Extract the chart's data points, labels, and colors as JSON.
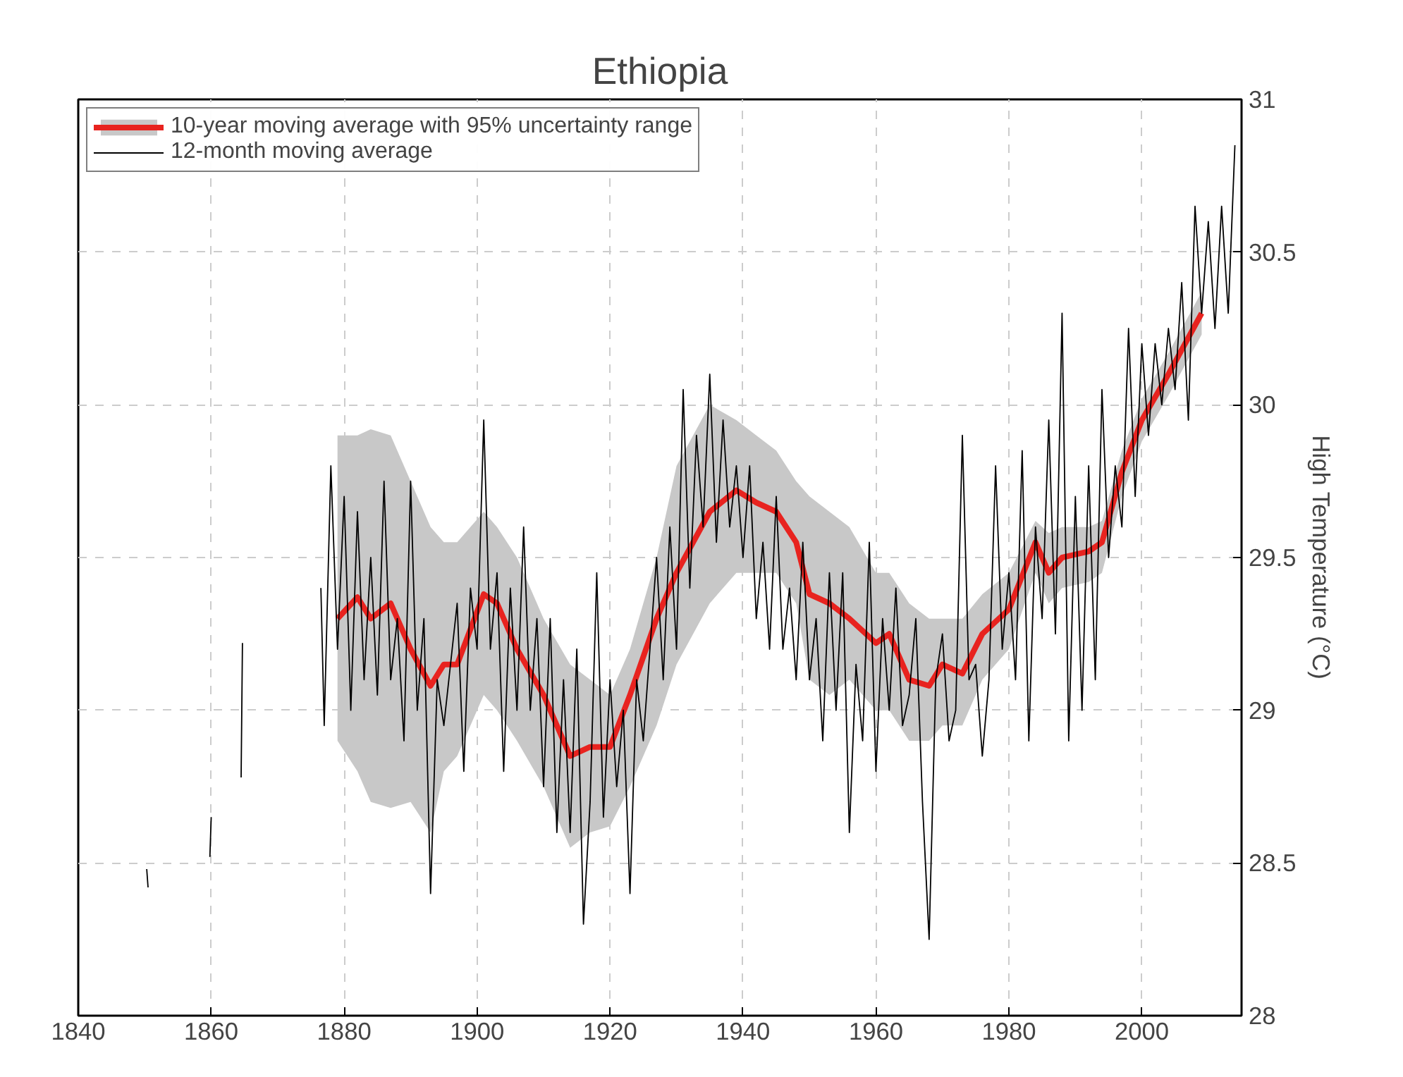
{
  "chart_data": {
    "type": "line",
    "title": "Ethiopia",
    "ylabel": "High Temperature (°C)",
    "xlim": [
      1840,
      2015
    ],
    "xticks": [
      1840,
      1860,
      1880,
      1900,
      1920,
      1940,
      1960,
      1980,
      2000
    ],
    "ylim": [
      28,
      31
    ],
    "yticks": [
      28,
      28.5,
      29,
      29.5,
      30,
      30.5,
      31
    ],
    "grid": true,
    "legend": "top left",
    "series": [
      {
        "name": "10-year moving average with 95% uncertainty range",
        "color": "#e8231f",
        "x": [
          1879,
          1882,
          1884,
          1887,
          1890,
          1893,
          1895,
          1897,
          1901,
          1903,
          1906,
          1910,
          1914,
          1917,
          1920,
          1923,
          1927,
          1930,
          1935,
          1939,
          1942,
          1945,
          1948,
          1950,
          1953,
          1956,
          1960,
          1962,
          1965,
          1968,
          1970,
          1973,
          1976,
          1980,
          1984,
          1986,
          1988,
          1992,
          1994,
          1997,
          2000,
          2004,
          2007,
          2009
        ],
        "values": [
          29.3,
          29.37,
          29.3,
          29.35,
          29.2,
          29.08,
          29.15,
          29.15,
          29.38,
          29.35,
          29.2,
          29.05,
          28.85,
          28.88,
          28.88,
          29.05,
          29.3,
          29.45,
          29.65,
          29.72,
          29.68,
          29.65,
          29.55,
          29.38,
          29.35,
          29.3,
          29.22,
          29.25,
          29.1,
          29.08,
          29.15,
          29.12,
          29.25,
          29.33,
          29.55,
          29.45,
          29.5,
          29.52,
          29.55,
          29.78,
          29.95,
          30.1,
          30.22,
          30.3
        ],
        "upper": [
          29.9,
          29.9,
          29.92,
          29.9,
          29.75,
          29.6,
          29.55,
          29.55,
          29.65,
          29.6,
          29.5,
          29.3,
          29.15,
          29.1,
          29.05,
          29.2,
          29.5,
          29.8,
          30.0,
          29.95,
          29.9,
          29.85,
          29.75,
          29.7,
          29.65,
          29.6,
          29.45,
          29.45,
          29.35,
          29.3,
          29.3,
          29.3,
          29.38,
          29.45,
          29.62,
          29.58,
          29.6,
          29.6,
          29.62,
          29.85,
          30.02,
          30.17,
          30.29,
          30.37
        ],
        "lower": [
          28.9,
          28.8,
          28.7,
          28.68,
          28.7,
          28.6,
          28.8,
          28.85,
          29.05,
          29.0,
          28.9,
          28.75,
          28.55,
          28.6,
          28.62,
          28.75,
          28.95,
          29.15,
          29.35,
          29.45,
          29.45,
          29.45,
          29.35,
          29.1,
          29.05,
          29.1,
          29.0,
          29.0,
          28.9,
          28.9,
          28.95,
          28.95,
          29.1,
          29.2,
          29.45,
          29.35,
          29.4,
          29.42,
          29.45,
          29.7,
          29.88,
          30.03,
          30.15,
          30.23
        ]
      },
      {
        "name": "12-month moving average",
        "color": "#000000",
        "x": [
          1850.3,
          1850.5,
          1855,
          1859.8,
          1860,
          1862,
          1864.5,
          1864.7,
          1870,
          1876.5,
          1877,
          1878,
          1879,
          1880,
          1881,
          1882,
          1883,
          1884,
          1885,
          1886,
          1887,
          1888,
          1889,
          1890,
          1891,
          1892,
          1893,
          1894,
          1895,
          1897,
          1898,
          1899,
          1900,
          1901,
          1902,
          1903,
          1904,
          1905,
          1906,
          1907,
          1908,
          1909,
          1910,
          1911,
          1912,
          1913,
          1914,
          1915,
          1916,
          1917,
          1918,
          1919,
          1920,
          1921,
          1922,
          1923,
          1924,
          1925,
          1927,
          1928,
          1929,
          1930,
          1931,
          1932,
          1933,
          1934,
          1935,
          1936,
          1937,
          1938,
          1939,
          1940,
          1941,
          1942,
          1943,
          1944,
          1945,
          1946,
          1947,
          1948,
          1949,
          1950,
          1951,
          1952,
          1953,
          1954,
          1955,
          1956,
          1957,
          1958,
          1959,
          1960,
          1961,
          1962,
          1963,
          1964,
          1965,
          1966,
          1967,
          1968,
          1969,
          1970,
          1971,
          1972,
          1973,
          1974,
          1975,
          1976,
          1977,
          1978,
          1979,
          1980,
          1981,
          1982,
          1983,
          1984,
          1985,
          1986,
          1987,
          1988,
          1989,
          1990,
          1991,
          1992,
          1993,
          1994,
          1995,
          1996,
          1997,
          1998,
          1999,
          2000,
          2001,
          2002,
          2003,
          2004,
          2005,
          2006,
          2007,
          2008,
          2009,
          2010,
          2011,
          2012,
          2013,
          2014
        ],
        "values": [
          28.48,
          28.42,
          null,
          28.52,
          28.65,
          null,
          28.78,
          29.22,
          null,
          29.4,
          28.95,
          29.8,
          29.2,
          29.7,
          29.0,
          29.65,
          29.1,
          29.5,
          29.05,
          29.75,
          29.1,
          29.3,
          28.9,
          29.75,
          29.0,
          29.3,
          28.4,
          29.1,
          28.95,
          29.35,
          28.8,
          29.4,
          29.2,
          29.95,
          29.2,
          29.45,
          28.8,
          29.4,
          29.0,
          29.6,
          29.0,
          29.3,
          28.75,
          29.3,
          28.6,
          29.1,
          28.6,
          29.2,
          28.3,
          28.7,
          29.45,
          28.65,
          29.1,
          28.75,
          29.0,
          28.4,
          29.1,
          28.9,
          29.5,
          29.1,
          29.6,
          29.2,
          30.05,
          29.4,
          29.9,
          29.6,
          30.1,
          29.55,
          29.95,
          29.6,
          29.8,
          29.5,
          29.8,
          29.3,
          29.55,
          29.2,
          29.7,
          29.2,
          29.4,
          29.1,
          29.55,
          29.1,
          29.3,
          28.9,
          29.45,
          29.0,
          29.45,
          28.6,
          29.15,
          28.9,
          29.55,
          28.8,
          29.3,
          29.0,
          29.4,
          28.95,
          29.05,
          29.3,
          28.7,
          28.25,
          29.1,
          29.25,
          28.9,
          29.0,
          29.9,
          29.1,
          29.15,
          28.85,
          29.1,
          29.8,
          29.2,
          29.45,
          29.1,
          29.85,
          28.9,
          29.6,
          29.3,
          29.95,
          29.25,
          30.3,
          28.9,
          29.7,
          29.0,
          29.8,
          29.1,
          30.05,
          29.5,
          29.8,
          29.6,
          30.25,
          29.7,
          30.2,
          29.9,
          30.2,
          30.0,
          30.25,
          30.05,
          30.4,
          29.95,
          30.65,
          30.3,
          30.6,
          30.25,
          30.65,
          30.3,
          30.85
        ]
      }
    ]
  }
}
